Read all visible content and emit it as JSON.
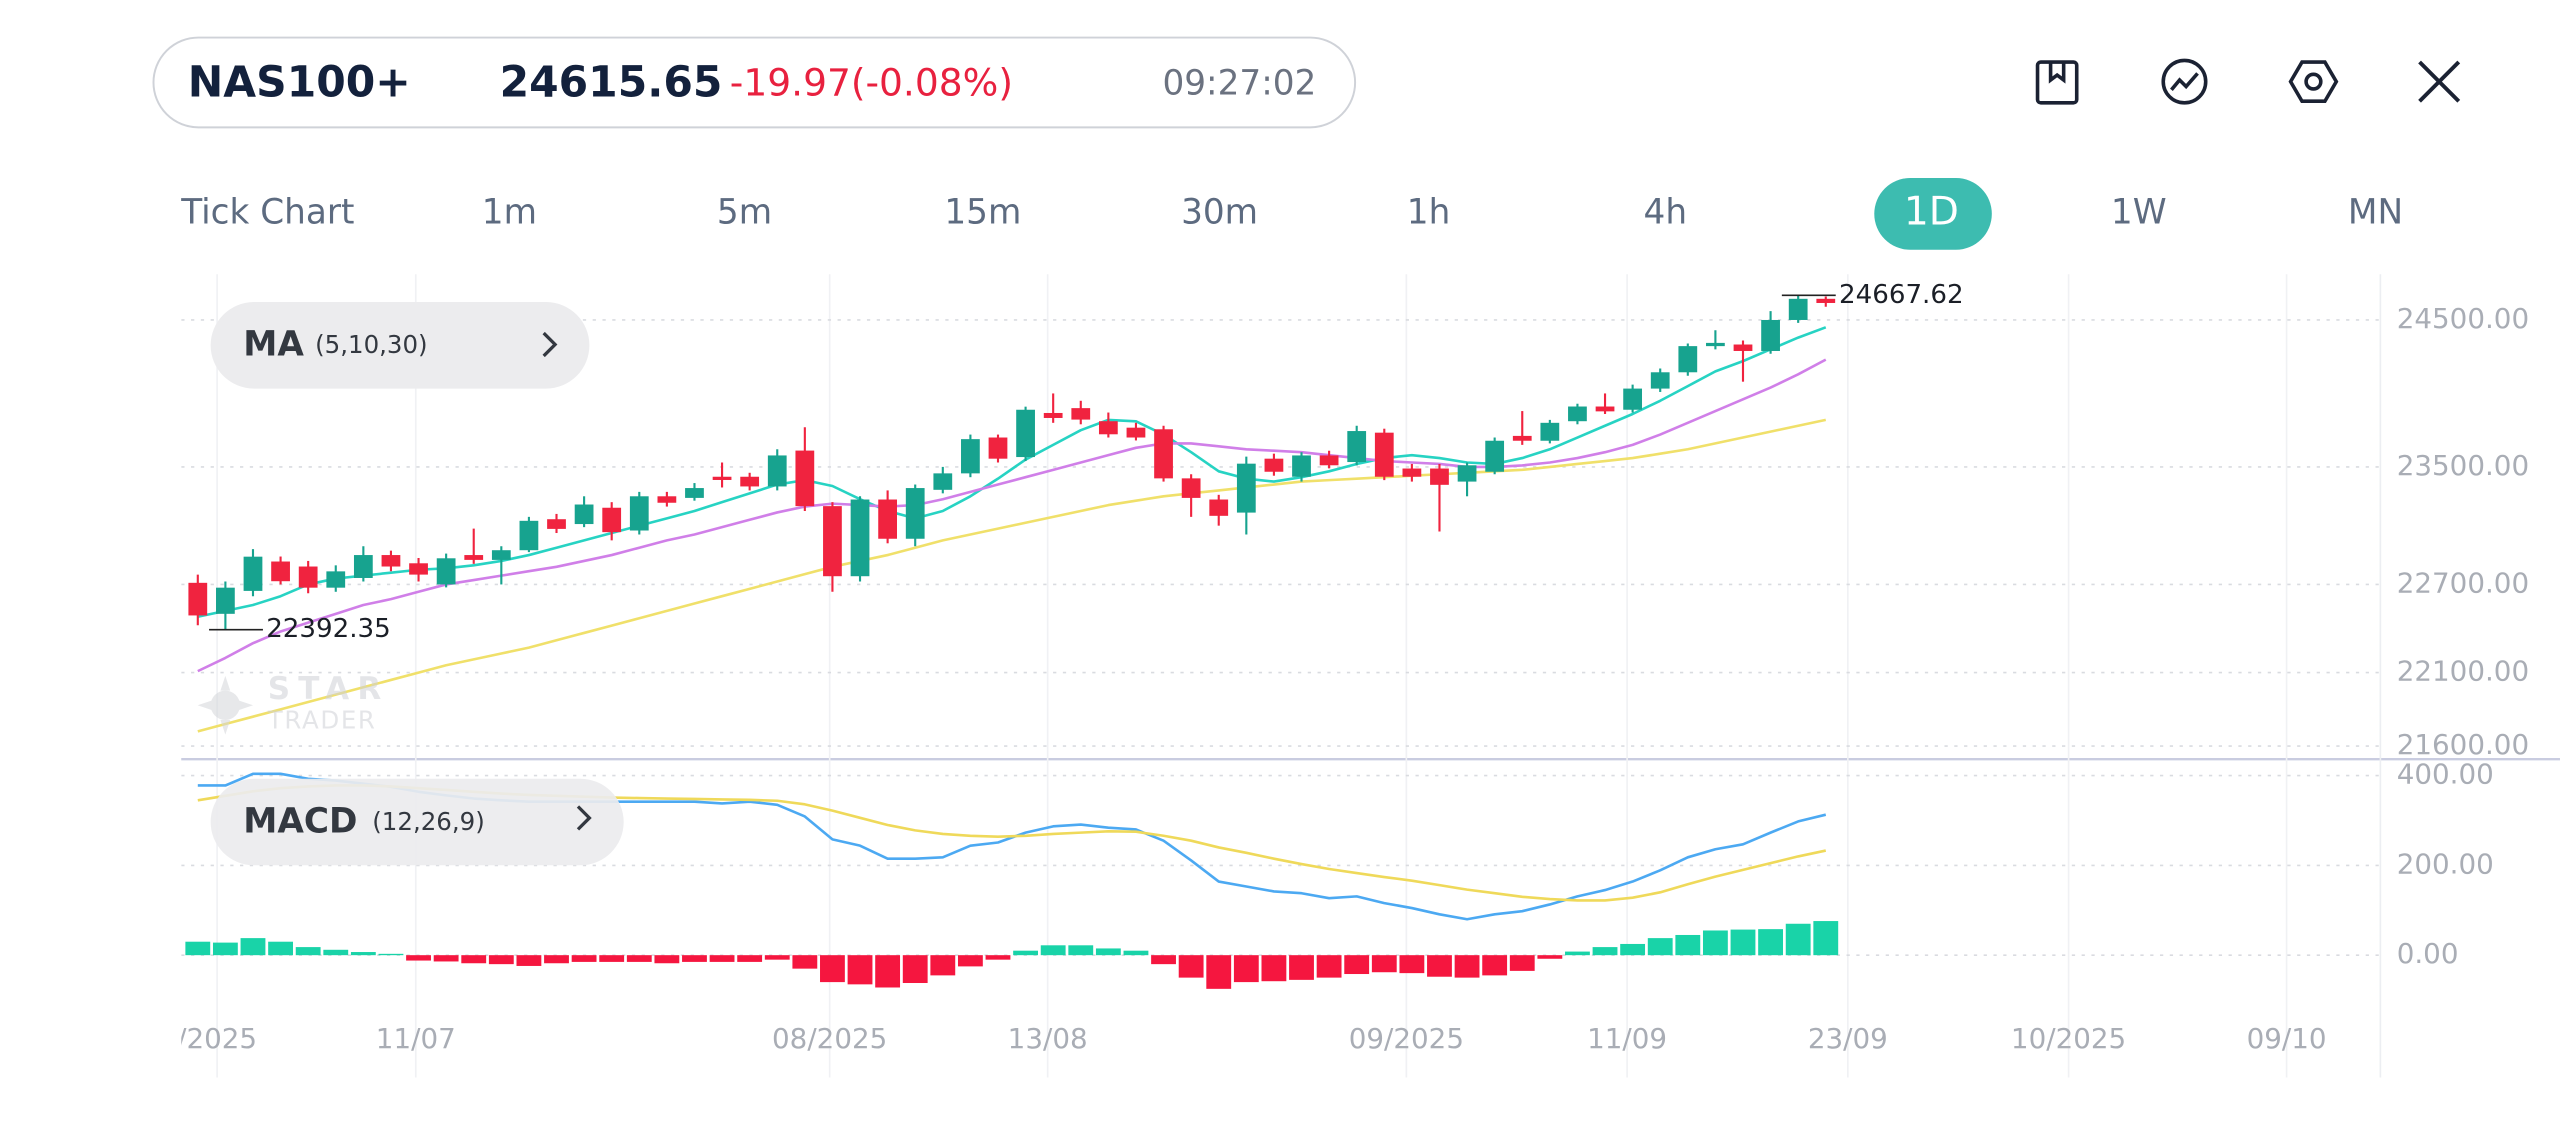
{
  "header": {
    "symbol": "NAS100+",
    "price": "24615.65",
    "change": "-19.97(-0.08%)",
    "time": "09:27:02"
  },
  "timeframes": [
    "Tick Chart",
    "1m",
    "5m",
    "15m",
    "30m",
    "1h",
    "4h",
    "1D",
    "1W",
    "MN"
  ],
  "active_timeframe": 7,
  "watermark": [
    "STAR",
    "TRADER"
  ],
  "chart_data": [
    {
      "type": "candlestick",
      "indicator": {
        "name": "MA",
        "params": "(5,10,30)"
      },
      "up_color": "#17a38f",
      "down_color": "#f0233f",
      "open": [
        22711,
        22500,
        22656,
        22856,
        22822,
        22678,
        22744,
        22900,
        22844,
        22700,
        22900,
        22867,
        22933,
        23144,
        23111,
        23222,
        23067,
        23300,
        23289,
        23433,
        23433,
        23367,
        23611,
        23233,
        22756,
        23278,
        23011,
        23344,
        23456,
        23700,
        23567,
        23867,
        23900,
        23811,
        23767,
        23756,
        23422,
        23278,
        23189,
        23556,
        23433,
        23578,
        23533,
        23733,
        23489,
        23489,
        23400,
        23467,
        23711,
        23678,
        23811,
        23911,
        23889,
        24033,
        24144,
        24322,
        24333,
        24289,
        24500,
        24644
      ],
      "high": [
        22767,
        22720,
        22940,
        22890,
        22860,
        22830,
        22960,
        22930,
        22880,
        22910,
        23080,
        22960,
        23160,
        23180,
        23300,
        23260,
        23330,
        23330,
        23390,
        23530,
        23460,
        23620,
        23770,
        23260,
        23300,
        23340,
        23380,
        23500,
        23720,
        23720,
        23910,
        24000,
        23950,
        23870,
        23800,
        23780,
        23450,
        23310,
        23570,
        23590,
        23600,
        23610,
        23780,
        23760,
        23520,
        23520,
        23530,
        23700,
        23880,
        23820,
        23930,
        24000,
        24060,
        24170,
        24340,
        24430,
        24360,
        24560,
        24667.62,
        24660
      ],
      "low": [
        22422,
        22392.35,
        22620,
        22700,
        22640,
        22650,
        22720,
        22790,
        22720,
        22680,
        22840,
        22700,
        22920,
        23050,
        23090,
        23000,
        23040,
        23230,
        23270,
        23360,
        23340,
        23340,
        23200,
        22650,
        22720,
        22980,
        22960,
        23320,
        23430,
        23530,
        23540,
        23800,
        23790,
        23700,
        23680,
        23400,
        23160,
        23100,
        23040,
        23440,
        23400,
        23490,
        23510,
        23410,
        23400,
        23060,
        23300,
        23450,
        23650,
        23660,
        23790,
        23860,
        23870,
        24010,
        24120,
        24300,
        24080,
        24270,
        24480,
        24590
      ],
      "close": [
        22489,
        22678,
        22889,
        22722,
        22678,
        22789,
        22900,
        22822,
        22767,
        22878,
        22867,
        22933,
        23133,
        23078,
        23244,
        23056,
        23300,
        23256,
        23356,
        23411,
        23367,
        23578,
        23233,
        22756,
        23278,
        23011,
        23356,
        23456,
        23689,
        23556,
        23889,
        23833,
        23822,
        23722,
        23700,
        23422,
        23289,
        23167,
        23522,
        23467,
        23578,
        23511,
        23744,
        23433,
        23433,
        23378,
        23511,
        23678,
        23678,
        23800,
        23911,
        23878,
        24033,
        24144,
        24322,
        24344,
        24289,
        24500,
        24644,
        24615.65
      ],
      "series": [
        {
          "color": "#27d3c3",
          "values": [
            22480,
            22520,
            22560,
            22620,
            22700,
            22740,
            22760,
            22780,
            22800,
            22810,
            22830,
            22860,
            22900,
            22950,
            23000,
            23050,
            23100,
            23150,
            23200,
            23260,
            23320,
            23380,
            23410,
            23370,
            23280,
            23200,
            23150,
            23200,
            23300,
            23420,
            23550,
            23650,
            23750,
            23820,
            23810,
            23720,
            23600,
            23470,
            23420,
            23400,
            23430,
            23470,
            23520,
            23560,
            23580,
            23560,
            23530,
            23520,
            23560,
            23620,
            23700,
            23780,
            23860,
            23950,
            24050,
            24150,
            24220,
            24300,
            24380,
            24450
          ]
        },
        {
          "color": "#d07fe8",
          "values": [
            22110,
            22200,
            22300,
            22380,
            22440,
            22500,
            22560,
            22600,
            22650,
            22700,
            22730,
            22760,
            22790,
            22820,
            22860,
            22900,
            22950,
            23000,
            23040,
            23090,
            23140,
            23190,
            23230,
            23250,
            23240,
            23230,
            23240,
            23280,
            23330,
            23380,
            23430,
            23480,
            23530,
            23580,
            23630,
            23660,
            23660,
            23640,
            23620,
            23610,
            23600,
            23580,
            23560,
            23540,
            23530,
            23520,
            23500,
            23500,
            23510,
            23530,
            23560,
            23600,
            23650,
            23720,
            23800,
            23880,
            23960,
            24040,
            24130,
            24230
          ]
        },
        {
          "color": "#f0e06a",
          "values": [
            21700,
            21750,
            21800,
            21850,
            21900,
            21950,
            22000,
            22050,
            22100,
            22150,
            22190,
            22230,
            22270,
            22320,
            22370,
            22420,
            22470,
            22520,
            22570,
            22620,
            22670,
            22720,
            22770,
            22820,
            22860,
            22900,
            22950,
            23000,
            23040,
            23080,
            23120,
            23160,
            23200,
            23240,
            23270,
            23300,
            23320,
            23340,
            23360,
            23380,
            23400,
            23410,
            23420,
            23430,
            23440,
            23450,
            23460,
            23470,
            23480,
            23500,
            23520,
            23540,
            23560,
            23590,
            23620,
            23660,
            23700,
            23740,
            23780,
            23820
          ]
        }
      ],
      "xlim": [
        -0.6,
        79.1
      ],
      "ylim": [
        21533,
        24811
      ],
      "yticks": [
        {
          "value": 24500,
          "label": "24500.00"
        },
        {
          "value": 23500,
          "label": "23500.00"
        },
        {
          "value": 22700,
          "label": "22700.00"
        },
        {
          "value": 22100,
          "label": "22100.00"
        },
        {
          "value": 21600,
          "label": "21600.00"
        }
      ],
      "grid": true
    },
    {
      "type": "macd",
      "indicator": {
        "name": "MACD",
        "params": "(12,26,9)"
      },
      "series": [
        {
          "color": "#4ca9f2",
          "values": [
            378,
            378,
            404,
            404,
            393,
            389,
            382,
            375,
            364,
            356,
            349,
            345,
            342,
            342,
            342,
            342,
            342,
            342,
            342,
            338,
            342,
            335,
            309,
            258,
            244,
            215,
            215,
            218,
            244,
            251,
            273,
            287,
            291,
            284,
            280,
            255,
            211,
            164,
            153,
            142,
            138,
            127,
            131,
            116,
            105,
            91,
            80,
            91,
            98,
            113,
            131,
            145,
            164,
            189,
            218,
            236,
            247,
            273,
            298,
            313
          ]
        },
        {
          "color": "#efd95a",
          "values": [
            345,
            355,
            365,
            372,
            376,
            378,
            378,
            376,
            372,
            368,
            364,
            360,
            357,
            355,
            353,
            351,
            350,
            349,
            348,
            347,
            346,
            344,
            336,
            322,
            306,
            290,
            278,
            270,
            266,
            264,
            266,
            270,
            273,
            276,
            275,
            266,
            255,
            240,
            228,
            215,
            203,
            192,
            183,
            174,
            166,
            156,
            146,
            138,
            130,
            125,
            122,
            122,
            128,
            140,
            158,
            175,
            190,
            205,
            220,
            233
          ]
        }
      ],
      "histogram": {
        "up_color": "#19d3a8",
        "down_color": "#f5163f",
        "values": [
          30,
          28,
          38,
          30,
          18,
          12,
          7,
          3,
          -12,
          -14,
          -18,
          -20,
          -24,
          -18,
          -15,
          -15,
          -15,
          -18,
          -15,
          -15,
          -15,
          -10,
          -30,
          -60,
          -65,
          -72,
          -62,
          -45,
          -25,
          -10,
          10,
          22,
          22,
          15,
          10,
          -20,
          -50,
          -75,
          -60,
          -58,
          -55,
          -50,
          -42,
          -38,
          -40,
          -48,
          -50,
          -45,
          -35,
          -8,
          8,
          18,
          25,
          38,
          45,
          55,
          57,
          58,
          70,
          76
        ]
      },
      "xlim": [
        -0.6,
        79.1
      ],
      "ylim": [
        -98,
        433
      ],
      "yticks": [
        {
          "value": 400,
          "label": "400.00"
        },
        {
          "value": 200,
          "label": "200.00"
        },
        {
          "value": 0,
          "label": "0.00"
        }
      ],
      "xticks": [
        {
          "value": 0.7,
          "label": "/2025"
        },
        {
          "value": 7.9,
          "label": "11/07"
        },
        {
          "value": 22.9,
          "label": "08/2025"
        },
        {
          "value": 30.8,
          "label": "13/08"
        },
        {
          "value": 43.8,
          "label": "09/2025"
        },
        {
          "value": 51.8,
          "label": "11/09"
        },
        {
          "value": 59.8,
          "label": "23/09"
        },
        {
          "value": 67.8,
          "label": "10/2025"
        },
        {
          "value": 75.7,
          "label": "09/10"
        }
      ],
      "grid": true
    }
  ]
}
